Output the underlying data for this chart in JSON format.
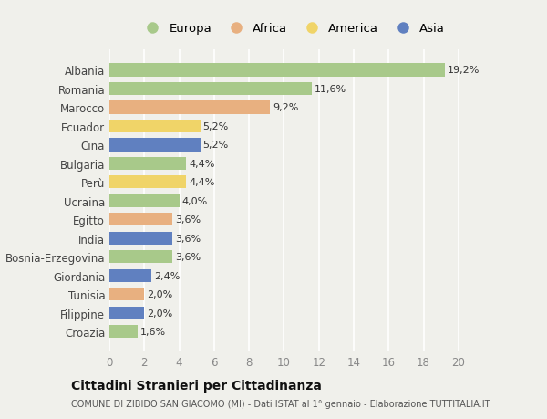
{
  "categories": [
    "Albania",
    "Romania",
    "Marocco",
    "Ecuador",
    "Cina",
    "Bulgaria",
    "Perù",
    "Ucraina",
    "Egitto",
    "India",
    "Bosnia-Erzegovina",
    "Giordania",
    "Tunisia",
    "Filippine",
    "Croazia"
  ],
  "values": [
    19.2,
    11.6,
    9.2,
    5.2,
    5.2,
    4.4,
    4.4,
    4.0,
    3.6,
    3.6,
    3.6,
    2.4,
    2.0,
    2.0,
    1.6
  ],
  "labels": [
    "19,2%",
    "11,6%",
    "9,2%",
    "5,2%",
    "5,2%",
    "4,4%",
    "4,4%",
    "4,0%",
    "3,6%",
    "3,6%",
    "3,6%",
    "2,4%",
    "2,0%",
    "2,0%",
    "1,6%"
  ],
  "continents": [
    "Europa",
    "Europa",
    "Africa",
    "America",
    "Asia",
    "Europa",
    "America",
    "Europa",
    "Africa",
    "Asia",
    "Europa",
    "Asia",
    "Africa",
    "Asia",
    "Europa"
  ],
  "colors": {
    "Europa": "#a8c98a",
    "Africa": "#e8b080",
    "America": "#f0d468",
    "Asia": "#6080c0"
  },
  "legend_order": [
    "Europa",
    "Africa",
    "America",
    "Asia"
  ],
  "xlim": [
    0,
    21
  ],
  "xticks": [
    0,
    2,
    4,
    6,
    8,
    10,
    12,
    14,
    16,
    18,
    20
  ],
  "title": "Cittadini Stranieri per Cittadinanza",
  "subtitle": "COMUNE DI ZIBIDO SAN GIACOMO (MI) - Dati ISTAT al 1° gennaio - Elaborazione TUTTITALIA.IT",
  "bg_color": "#f0f0eb",
  "grid_color": "#ffffff",
  "bar_height": 0.7
}
